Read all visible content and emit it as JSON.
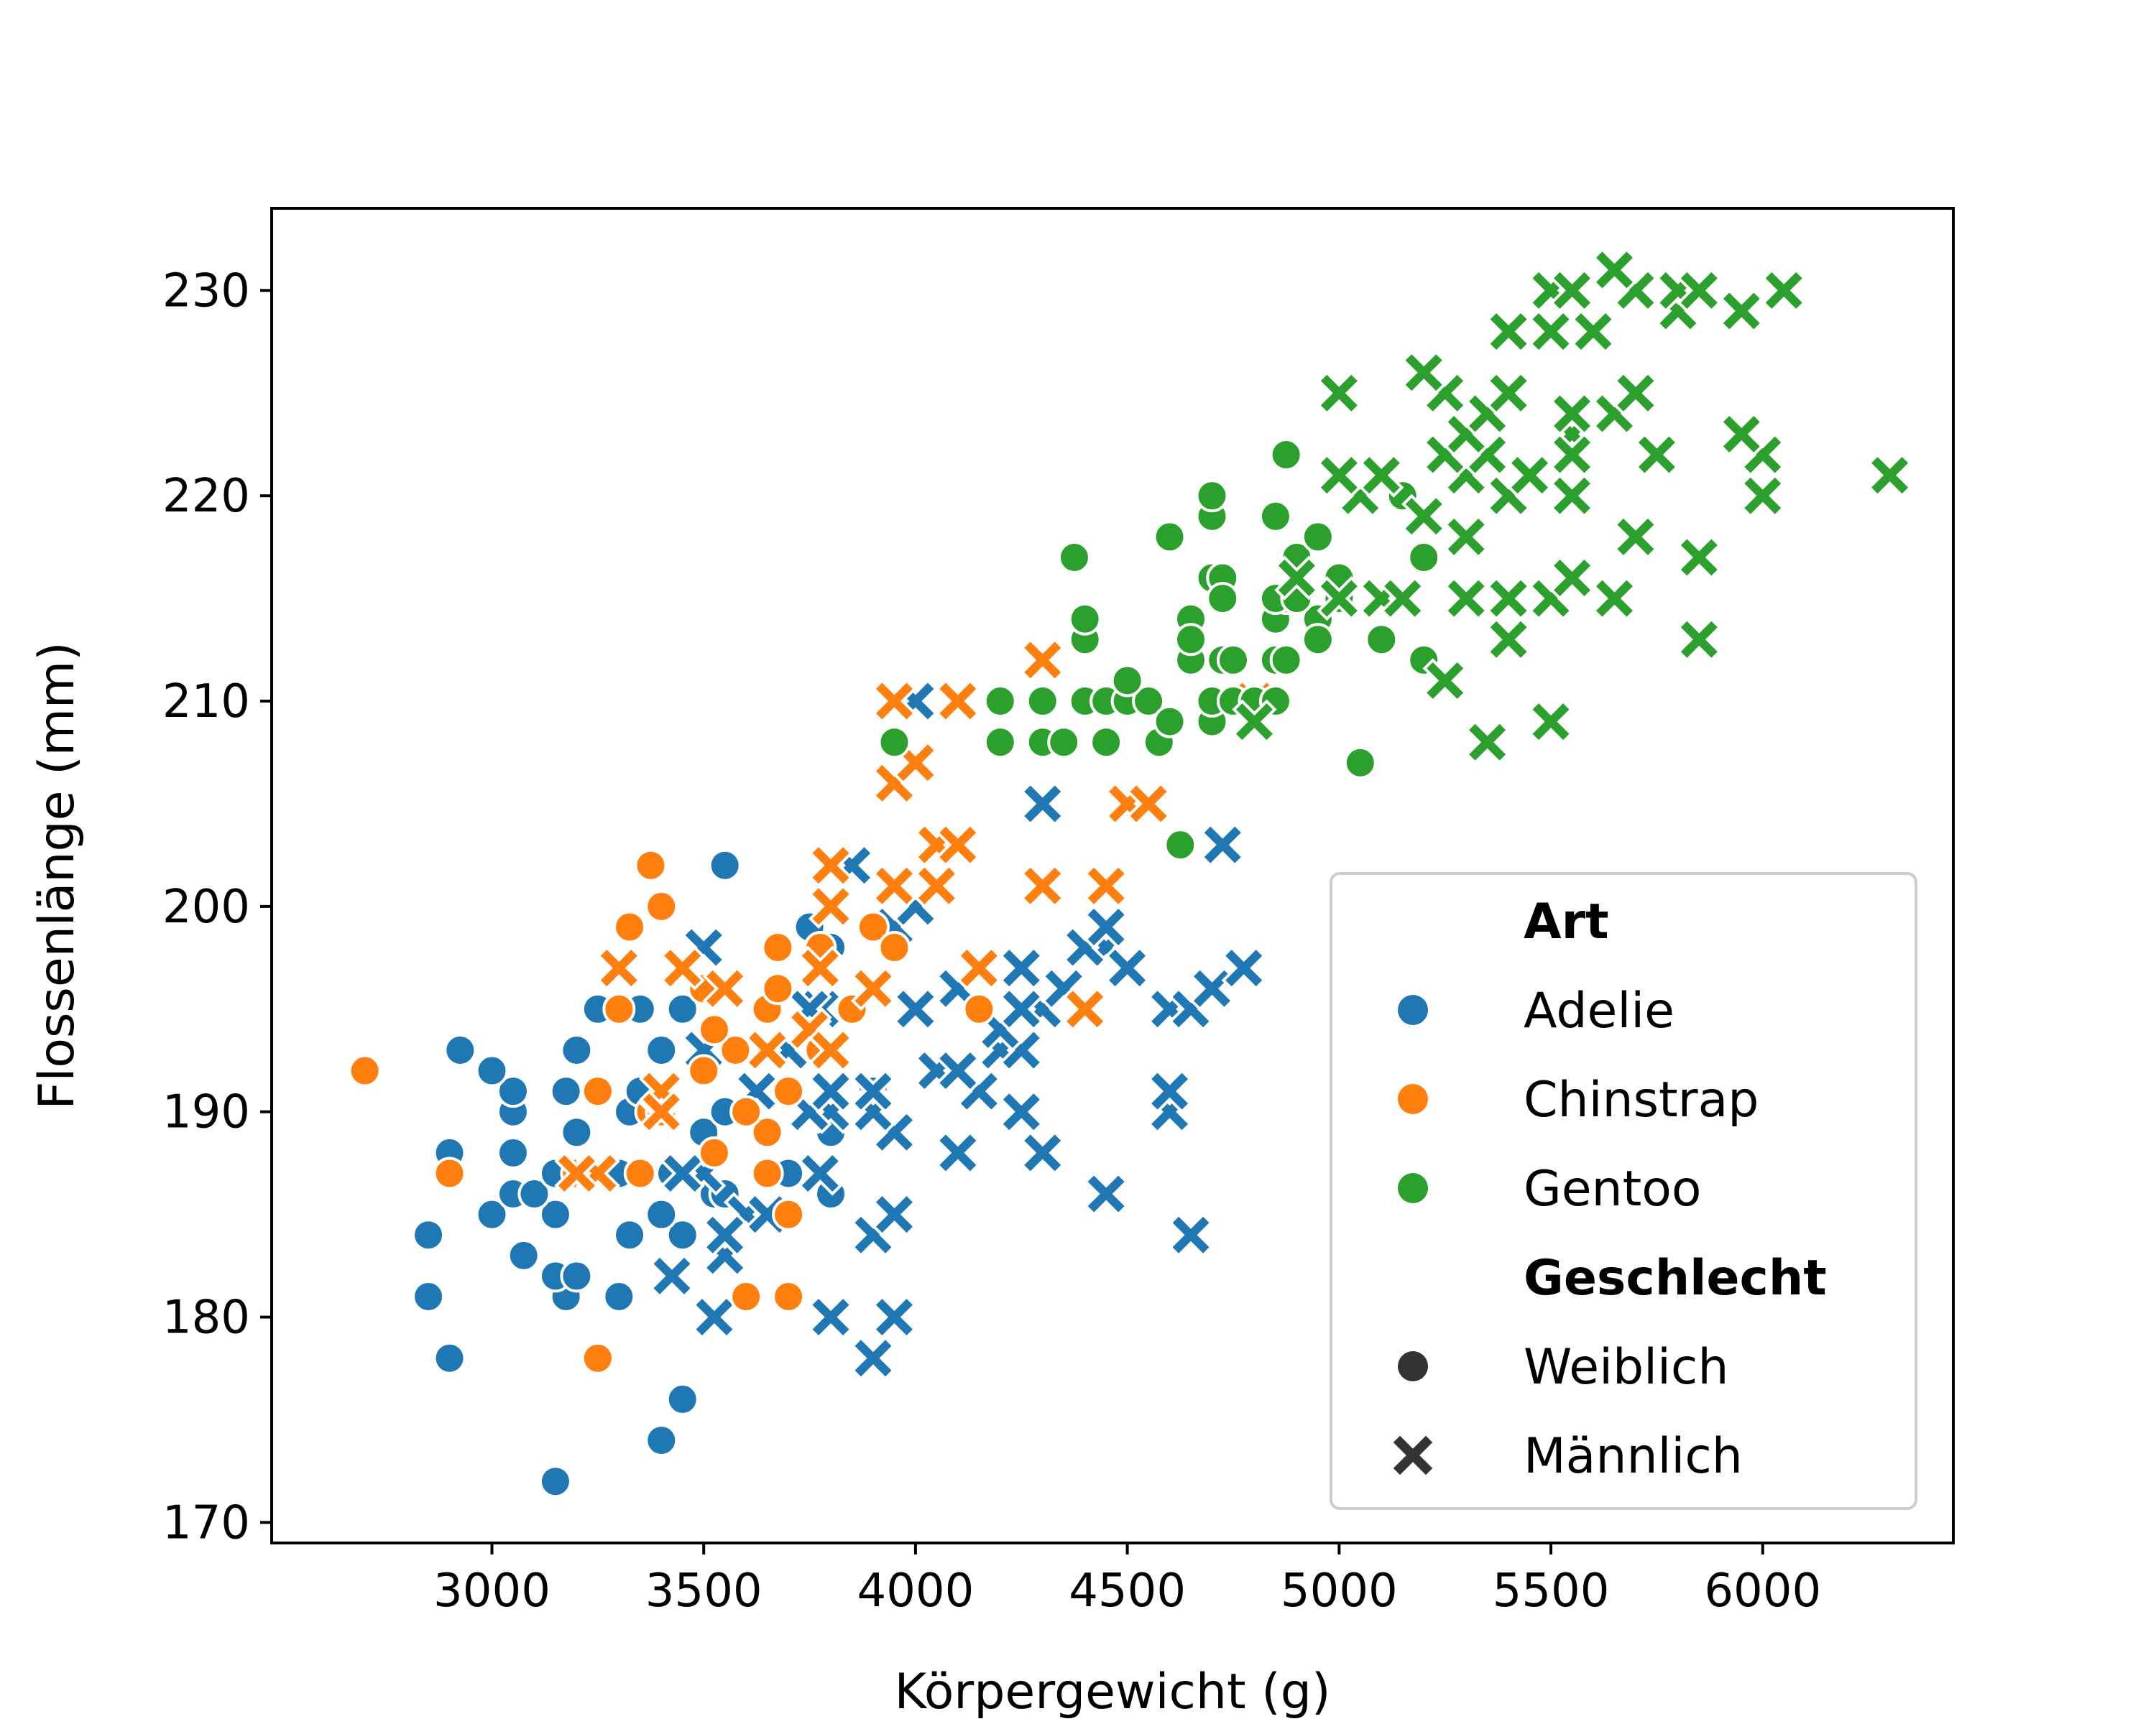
{
  "chart_data": {
    "type": "scatter",
    "title": "",
    "xlabel": "Körpergewicht (g)",
    "ylabel": "Flossenlänge (mm)",
    "xlim": [
      2480,
      6450
    ],
    "ylim": [
      169,
      234
    ],
    "xticks": [
      3000,
      3500,
      4000,
      4500,
      5000,
      5500,
      6000
    ],
    "yticks": [
      170,
      180,
      190,
      200,
      210,
      220,
      230
    ],
    "grid": false,
    "legend_position": "lower-right",
    "legend": {
      "hue_title": "Art",
      "style_title": "Geschlecht",
      "species": [
        {
          "key": "adelie",
          "label": "Adelie",
          "color": "#1f77b4"
        },
        {
          "key": "chinstrap",
          "label": "Chinstrap",
          "color": "#ff7f0e"
        },
        {
          "key": "gentoo",
          "label": "Gentoo",
          "color": "#2ca02c"
        }
      ],
      "sexes": [
        {
          "key": "female",
          "label": "Weiblich",
          "marker": "circle"
        },
        {
          "key": "male",
          "label": "Männlich",
          "marker": "x"
        }
      ]
    },
    "series": [
      {
        "species": "adelie",
        "sex": "female",
        "points": [
          [
            3150,
            172
          ],
          [
            3400,
            174
          ],
          [
            3450,
            176
          ],
          [
            2900,
            178
          ],
          [
            3300,
            181
          ],
          [
            2850,
            181
          ],
          [
            3175,
            181
          ],
          [
            3075,
            183
          ],
          [
            3150,
            182
          ],
          [
            3200,
            182
          ],
          [
            3325,
            184
          ],
          [
            2850,
            184
          ],
          [
            3450,
            184
          ],
          [
            3400,
            185
          ],
          [
            3000,
            185
          ],
          [
            3150,
            185
          ],
          [
            3050,
            186
          ],
          [
            3100,
            186
          ],
          [
            3525,
            186
          ],
          [
            3550,
            186
          ],
          [
            3150,
            187
          ],
          [
            3300,
            187
          ],
          [
            3425,
            187
          ],
          [
            3700,
            187
          ],
          [
            3800,
            186
          ],
          [
            2900,
            188
          ],
          [
            3050,
            188
          ],
          [
            3200,
            189
          ],
          [
            3500,
            189
          ],
          [
            3800,
            189
          ],
          [
            3050,
            190
          ],
          [
            3325,
            190
          ],
          [
            3550,
            190
          ],
          [
            3050,
            191
          ],
          [
            3175,
            191
          ],
          [
            3350,
            191
          ],
          [
            3900,
            191
          ],
          [
            3400,
            193
          ],
          [
            2925,
            193
          ],
          [
            3200,
            193
          ],
          [
            3250,
            195
          ],
          [
            3350,
            195
          ],
          [
            3450,
            195
          ],
          [
            3550,
            202
          ],
          [
            3800,
            198
          ],
          [
            3750,
            199
          ],
          [
            3000,
            192
          ]
        ]
      },
      {
        "species": "adelie",
        "sex": "male",
        "points": [
          [
            3900,
            178
          ],
          [
            3525,
            180
          ],
          [
            3800,
            180
          ],
          [
            3950,
            180
          ],
          [
            3425,
            182
          ],
          [
            3550,
            183
          ],
          [
            3900,
            184
          ],
          [
            3950,
            185
          ],
          [
            3600,
            185
          ],
          [
            3650,
            185
          ],
          [
            3550,
            184
          ],
          [
            3450,
            187
          ],
          [
            3500,
            187
          ],
          [
            3775,
            187
          ],
          [
            4100,
            188
          ],
          [
            4300,
            188
          ],
          [
            3950,
            189
          ],
          [
            3800,
            190
          ],
          [
            3900,
            190
          ],
          [
            4250,
            190
          ],
          [
            4600,
            190
          ],
          [
            3750,
            190
          ],
          [
            3625,
            191
          ],
          [
            3800,
            191
          ],
          [
            3900,
            191
          ],
          [
            4150,
            191
          ],
          [
            4600,
            191
          ],
          [
            4050,
            192
          ],
          [
            4100,
            192
          ],
          [
            3500,
            193
          ],
          [
            3700,
            193
          ],
          [
            4200,
            193
          ],
          [
            4250,
            193
          ],
          [
            4200,
            194
          ],
          [
            4450,
            186
          ],
          [
            4650,
            184
          ],
          [
            3775,
            195
          ],
          [
            4300,
            195
          ],
          [
            4600,
            195
          ],
          [
            4650,
            195
          ],
          [
            4250,
            195
          ],
          [
            4000,
            195
          ],
          [
            4100,
            196
          ],
          [
            4350,
            196
          ],
          [
            4450,
            198
          ],
          [
            4700,
            196
          ],
          [
            4250,
            197
          ],
          [
            4500,
            197
          ],
          [
            4775,
            197
          ],
          [
            4400,
            198
          ],
          [
            4450,
            199
          ],
          [
            3950,
            199
          ],
          [
            4000,
            200
          ],
          [
            3500,
            198
          ],
          [
            3850,
            202
          ],
          [
            3750,
            195
          ],
          [
            4000,
            210
          ],
          [
            3450,
            187
          ],
          [
            3650,
            193
          ],
          [
            3550,
            196
          ],
          [
            4300,
            205
          ],
          [
            4725,
            203
          ]
        ]
      },
      {
        "species": "chinstrap",
        "sex": "female",
        "points": [
          [
            2700,
            192
          ],
          [
            3250,
            178
          ],
          [
            3600,
            181
          ],
          [
            3700,
            181
          ],
          [
            3700,
            185
          ],
          [
            2900,
            187
          ],
          [
            3200,
            187
          ],
          [
            3350,
            187
          ],
          [
            3650,
            187
          ],
          [
            3525,
            188
          ],
          [
            3650,
            189
          ],
          [
            3375,
            190
          ],
          [
            3400,
            190
          ],
          [
            3600,
            190
          ],
          [
            3250,
            191
          ],
          [
            3700,
            191
          ],
          [
            3500,
            192
          ],
          [
            3575,
            193
          ],
          [
            3775,
            193
          ],
          [
            3525,
            194
          ],
          [
            3300,
            195
          ],
          [
            3650,
            195
          ],
          [
            3850,
            195
          ],
          [
            4150,
            195
          ],
          [
            3500,
            196
          ],
          [
            3675,
            196
          ],
          [
            3325,
            199
          ],
          [
            3900,
            199
          ],
          [
            3400,
            200
          ],
          [
            3375,
            202
          ],
          [
            3675,
            198
          ],
          [
            3775,
            198
          ],
          [
            3950,
            198
          ]
        ]
      },
      {
        "species": "chinstrap",
        "sex": "male",
        "points": [
          [
            3250,
            187
          ],
          [
            3200,
            187
          ],
          [
            3400,
            191
          ],
          [
            3300,
            197
          ],
          [
            3450,
            197
          ],
          [
            3775,
            197
          ],
          [
            4150,
            197
          ],
          [
            3400,
            190
          ],
          [
            3550,
            196
          ],
          [
            3650,
            193
          ],
          [
            3750,
            194
          ],
          [
            3800,
            193
          ],
          [
            3900,
            196
          ],
          [
            3800,
            200
          ],
          [
            3800,
            202
          ],
          [
            3950,
            201
          ],
          [
            4050,
            201
          ],
          [
            4300,
            201
          ],
          [
            4450,
            201
          ],
          [
            4050,
            203
          ],
          [
            4100,
            203
          ],
          [
            4400,
            195
          ],
          [
            4500,
            205
          ],
          [
            4550,
            205
          ],
          [
            3950,
            206
          ],
          [
            4000,
            207
          ],
          [
            3950,
            210
          ],
          [
            4100,
            210
          ],
          [
            4300,
            212
          ],
          [
            4800,
            210
          ]
        ]
      },
      {
        "species": "gentoo",
        "sex": "female",
        "points": [
          [
            5050,
            207
          ],
          [
            4625,
            203
          ],
          [
            4200,
            208
          ],
          [
            4300,
            208
          ],
          [
            4350,
            208
          ],
          [
            4450,
            208
          ],
          [
            4575,
            208
          ],
          [
            3950,
            208
          ],
          [
            4200,
            210
          ],
          [
            4300,
            210
          ],
          [
            4400,
            210
          ],
          [
            4450,
            210
          ],
          [
            4500,
            210
          ],
          [
            4550,
            210
          ],
          [
            4600,
            209
          ],
          [
            4700,
            209
          ],
          [
            4700,
            210
          ],
          [
            4750,
            210
          ],
          [
            4800,
            210
          ],
          [
            4850,
            210
          ],
          [
            4500,
            211
          ],
          [
            4650,
            212
          ],
          [
            4725,
            212
          ],
          [
            4750,
            212
          ],
          [
            4850,
            212
          ],
          [
            4875,
            212
          ],
          [
            5100,
            213
          ],
          [
            5200,
            212
          ],
          [
            4400,
            213
          ],
          [
            4400,
            214
          ],
          [
            4650,
            214
          ],
          [
            4850,
            214
          ],
          [
            4950,
            214
          ],
          [
            4875,
            215
          ],
          [
            4700,
            216
          ],
          [
            4725,
            216
          ],
          [
            4850,
            215
          ],
          [
            4900,
            215
          ],
          [
            5000,
            215
          ],
          [
            5000,
            216
          ],
          [
            4900,
            217
          ],
          [
            4375,
            217
          ],
          [
            4600,
            218
          ],
          [
            4950,
            218
          ],
          [
            5200,
            217
          ],
          [
            4700,
            219
          ],
          [
            4700,
            220
          ],
          [
            4850,
            219
          ],
          [
            4875,
            222
          ],
          [
            5150,
            220
          ],
          [
            4950,
            213
          ],
          [
            4725,
            215
          ],
          [
            4650,
            213
          ]
        ]
      },
      {
        "species": "gentoo",
        "sex": "male",
        "points": [
          [
            4800,
            209
          ],
          [
            5350,
            208
          ],
          [
            5500,
            209
          ],
          [
            5250,
            211
          ],
          [
            5400,
            213
          ],
          [
            5850,
            213
          ],
          [
            5000,
            215
          ],
          [
            5100,
            215
          ],
          [
            5150,
            215
          ],
          [
            5300,
            215
          ],
          [
            5400,
            215
          ],
          [
            5500,
            215
          ],
          [
            5650,
            215
          ],
          [
            4900,
            216
          ],
          [
            5550,
            216
          ],
          [
            5850,
            217
          ],
          [
            5300,
            218
          ],
          [
            5700,
            218
          ],
          [
            5050,
            220
          ],
          [
            5200,
            219
          ],
          [
            5400,
            220
          ],
          [
            5550,
            220
          ],
          [
            6000,
            220
          ],
          [
            5000,
            221
          ],
          [
            5100,
            221
          ],
          [
            5300,
            221
          ],
          [
            6300,
            221
          ],
          [
            5250,
            222
          ],
          [
            5350,
            222
          ],
          [
            5750,
            222
          ],
          [
            6000,
            222
          ],
          [
            5300,
            223
          ],
          [
            5550,
            223
          ],
          [
            5950,
            223
          ],
          [
            5350,
            224
          ],
          [
            5550,
            224
          ],
          [
            5650,
            224
          ],
          [
            5000,
            225
          ],
          [
            5250,
            225
          ],
          [
            5400,
            225
          ],
          [
            5700,
            225
          ],
          [
            5200,
            226
          ],
          [
            5400,
            228
          ],
          [
            5500,
            228
          ],
          [
            5600,
            228
          ],
          [
            5800,
            229
          ],
          [
            5950,
            229
          ],
          [
            5500,
            230
          ],
          [
            5550,
            230
          ],
          [
            5700,
            230
          ],
          [
            5800,
            230
          ],
          [
            5850,
            230
          ],
          [
            6050,
            230
          ],
          [
            5650,
            231
          ],
          [
            5550,
            222
          ],
          [
            5450,
            221
          ]
        ]
      }
    ]
  }
}
